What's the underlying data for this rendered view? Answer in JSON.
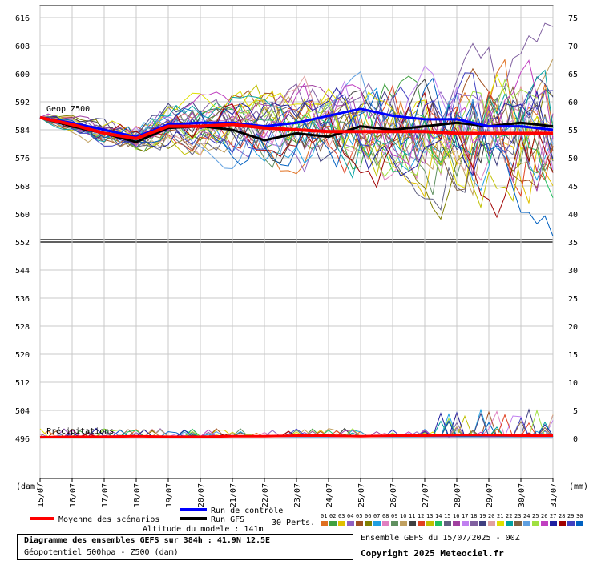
{
  "chart_data": {
    "type": "line",
    "left_axis_ticks": [
      616,
      608,
      600,
      592,
      584,
      576,
      568,
      560,
      552,
      544,
      536,
      528,
      520,
      512,
      504,
      496
    ],
    "right_axis_ticks": [
      75,
      70,
      65,
      60,
      55,
      50,
      45,
      40,
      35,
      30,
      25,
      20,
      15,
      10,
      5,
      0
    ],
    "left_unit": "(dam)",
    "right_unit": "(mm)",
    "ylim_left": [
      490,
      620
    ],
    "x_dates": [
      "15/07",
      "16/07",
      "17/07",
      "18/07",
      "19/07",
      "20/07",
      "21/07",
      "22/07",
      "23/07",
      "24/07",
      "25/07",
      "26/07",
      "27/07",
      "28/07",
      "29/07",
      "30/07",
      "31/07"
    ],
    "upper_panel_label": "Geop Z500",
    "lower_panel_label": "Précipitations",
    "grid": true,
    "series": [
      {
        "name": "Moyenne des scénarios",
        "color": "#ff0000",
        "values": [
          587.5,
          585.5,
          583.0,
          581.5,
          585.0,
          585.0,
          585.5,
          584.5,
          584.0,
          583.5,
          583.5,
          583.5,
          583.5,
          583.0,
          583.0,
          583.0,
          583.0
        ]
      },
      {
        "name": "Run de contrôle",
        "color": "#0000ff",
        "values": [
          587.5,
          586.0,
          584.0,
          582.0,
          585.5,
          586.0,
          586.0,
          585.0,
          586.0,
          588.0,
          590.0,
          588.0,
          587.0,
          587.0,
          585.0,
          585.0,
          584.0
        ]
      },
      {
        "name": "Run GFS",
        "color": "#000000",
        "values": [
          587.5,
          585.0,
          583.0,
          580.5,
          584.5,
          585.0,
          584.0,
          581.0,
          583.0,
          582.0,
          585.0,
          584.0,
          585.0,
          586.0,
          585.0,
          586.0,
          585.0
        ]
      }
    ],
    "precip_mean": [
      0.2,
      0.3,
      0.3,
      0.4,
      0.3,
      0.3,
      0.4,
      0.4,
      0.5,
      0.5,
      0.4,
      0.5,
      0.5,
      0.6,
      0.6,
      0.5,
      0.5
    ]
  },
  "legend": {
    "mean_label": "Moyenne des scénarios",
    "control_label": "Run de contrôle",
    "gfs_label": "Run GFS",
    "perts_label": "30 Perts.",
    "pert_numbers": [
      "01",
      "02",
      "03",
      "04",
      "05",
      "06",
      "07",
      "08",
      "09",
      "10",
      "11",
      "12",
      "13",
      "14",
      "15",
      "16",
      "17",
      "18",
      "19",
      "20",
      "21",
      "22",
      "23",
      "24",
      "25",
      "26",
      "27",
      "28",
      "29",
      "30"
    ],
    "pert_colors": [
      "#e07020",
      "#40a040",
      "#e0c000",
      "#9060c0",
      "#a05020",
      "#808000",
      "#20a0e0",
      "#e080c0",
      "#609060",
      "#c0a060",
      "#404040",
      "#e04020",
      "#c0c000",
      "#20c060",
      "#606080",
      "#a040a0",
      "#c080f0",
      "#8060a0",
      "#404080",
      "#e0a0a0",
      "#e0e000",
      "#00a0a0",
      "#806040",
      "#60a0e0",
      "#a0e040",
      "#c040c0",
      "#2020a0",
      "#a00000",
      "#4040c0",
      "#0060c0"
    ],
    "model_altitude": "Altitude du modele : 141m"
  },
  "footer": {
    "title": "Diagramme des ensembles GEFS sur 384h : 41.9N 12.5E",
    "subtitle": "Géopotentiel 500hpa - Z500 (dam)",
    "run_info": "Ensemble GEFS du 15/07/2025 - 00Z",
    "copyright": "Copyright 2025 Meteociel.fr"
  }
}
